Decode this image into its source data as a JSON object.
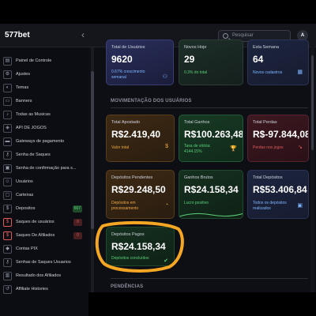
{
  "topbar": {
    "logo": "577bet",
    "collapse_icon": "‹",
    "search_placeholder": "Pesquisar",
    "avatar_letter": "A"
  },
  "sidebar": {
    "items": [
      {
        "label": "Painel de Controle",
        "icon": "chart-icon"
      },
      {
        "label": "Ajustes",
        "icon": "gear-icon"
      },
      {
        "label": "Temas",
        "icon": "palette-icon"
      },
      {
        "label": "Banners",
        "icon": "image-icon"
      },
      {
        "label": "Todas as Musicas",
        "icon": "music-icon"
      },
      {
        "label": "API DE JOGOS",
        "icon": "gamepad-icon"
      },
      {
        "label": "Gateways de pagamento",
        "icon": "card-icon"
      },
      {
        "label": "Senha de Saques",
        "icon": "key-icon"
      },
      {
        "label": "Senha de confirmação para s...",
        "icon": "lock-icon"
      },
      {
        "label": "Usuários",
        "icon": "users-icon"
      },
      {
        "label": "Carteiras",
        "icon": "wallet-icon"
      },
      {
        "label": "Depositos",
        "icon": "deposit-icon",
        "badge": "667",
        "badge_color": "green"
      },
      {
        "label": "Saques de usuários",
        "icon": "withdraw-icon",
        "badge": "0",
        "badge_color": "red"
      },
      {
        "label": "Saques De Afiliados",
        "icon": "withdraw-icon",
        "badge": "0",
        "badge_color": "red"
      },
      {
        "label": "Contas PIX",
        "icon": "pix-icon"
      },
      {
        "label": "Senhas de Saques Usuarios",
        "icon": "key-icon"
      },
      {
        "label": "Resultado dos Afiliados",
        "icon": "results-icon"
      },
      {
        "label": "Affiliate Histories",
        "icon": "history-icon"
      }
    ]
  },
  "top_cards": [
    {
      "title": "Total de Usuários",
      "value": "9620",
      "sub": "0.67% crescimento semanal",
      "sub_color": "#7fb6ff"
    },
    {
      "title": "Novos Hoje",
      "value": "29",
      "sub": "0.3% do total",
      "sub_color": "#5ad17a"
    },
    {
      "title": "Esta Semana",
      "value": "64",
      "sub": "Novos cadastros",
      "sub_color": "#7fb6ff"
    }
  ],
  "section_movement": "MOVIMENTAÇÃO DOS USUÁRIOS",
  "cards_row1": [
    {
      "title": "Total Apostado",
      "value": "R$2.419,40",
      "sub": "Valor total",
      "sub_color": "#f0a742"
    },
    {
      "title": "Total Ganhos",
      "value": "R$100.263,48",
      "sub": "Taxa de vitória: 4144.15%",
      "sub_color": "#5ad17a"
    },
    {
      "title": "Total Perdas",
      "value": "R$-97.844,08",
      "sub": "Perdas nos jogos",
      "sub_color": "#e05a5a"
    }
  ],
  "cards_row2": [
    {
      "title": "Depósitos Pendentes",
      "value": "R$29.248,50",
      "sub": "Depósitos em processamento",
      "sub_color": "#f0a742"
    },
    {
      "title": "Ganhos Brutos",
      "value": "R$24.158,34",
      "sub": "Lucro positivo",
      "sub_color": "#5ad17a"
    },
    {
      "title": "Total Depósitos",
      "value": "R$53.406,84",
      "sub": "Todos os depósitos realizados",
      "sub_color": "#7fb6ff"
    }
  ],
  "card_paid": {
    "title": "Depósitos Pagos",
    "value": "R$24.158,34",
    "sub": "Depósitos concluídos",
    "sub_color": "#5ad17a"
  },
  "section_pending": "PENDÊNCIAS",
  "colors": {
    "highlight": "#f5a623",
    "page_bg": "#0e0f14"
  }
}
